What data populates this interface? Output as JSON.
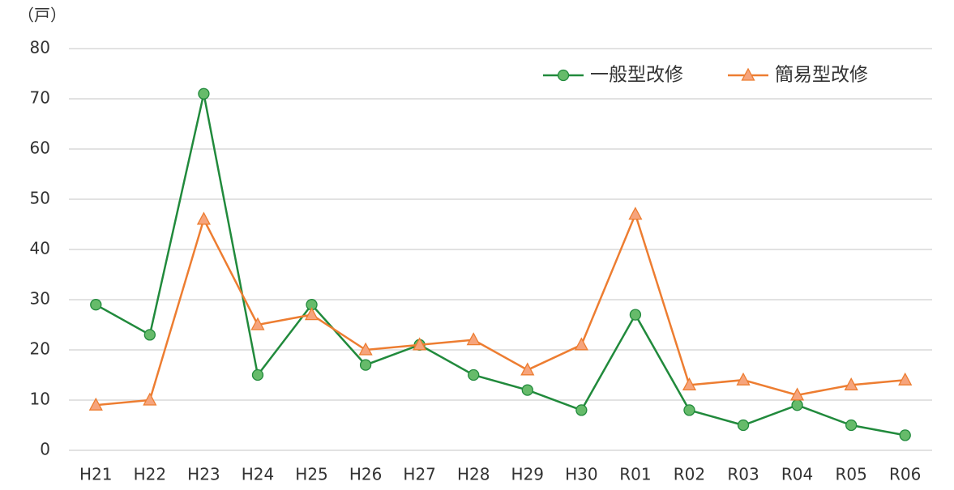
{
  "chart_data": {
    "type": "line",
    "y_label": "（戸）",
    "categories": [
      "H21",
      "H22",
      "H23",
      "H24",
      "H25",
      "H26",
      "H27",
      "H28",
      "H29",
      "H30",
      "R01",
      "R02",
      "R03",
      "R04",
      "R05",
      "R06"
    ],
    "series": [
      {
        "name": "一般型改修",
        "color": "#218a3c",
        "marker": "circle",
        "marker_fill": "#66bb6a",
        "values": [
          29,
          23,
          71,
          15,
          29,
          17,
          21,
          15,
          12,
          8,
          27,
          8,
          5,
          9,
          5,
          3
        ]
      },
      {
        "name": "簡易型改修",
        "color": "#ed7d31",
        "marker": "triangle",
        "marker_fill": "#f6a47c",
        "values": [
          9,
          10,
          46,
          25,
          27,
          20,
          21,
          22,
          16,
          21,
          47,
          13,
          14,
          11,
          13,
          14
        ]
      }
    ],
    "ylim": [
      0,
      80
    ],
    "yticks": [
      0,
      10,
      20,
      30,
      40,
      50,
      60,
      70,
      80
    ],
    "grid": true,
    "legend": "top-right"
  }
}
